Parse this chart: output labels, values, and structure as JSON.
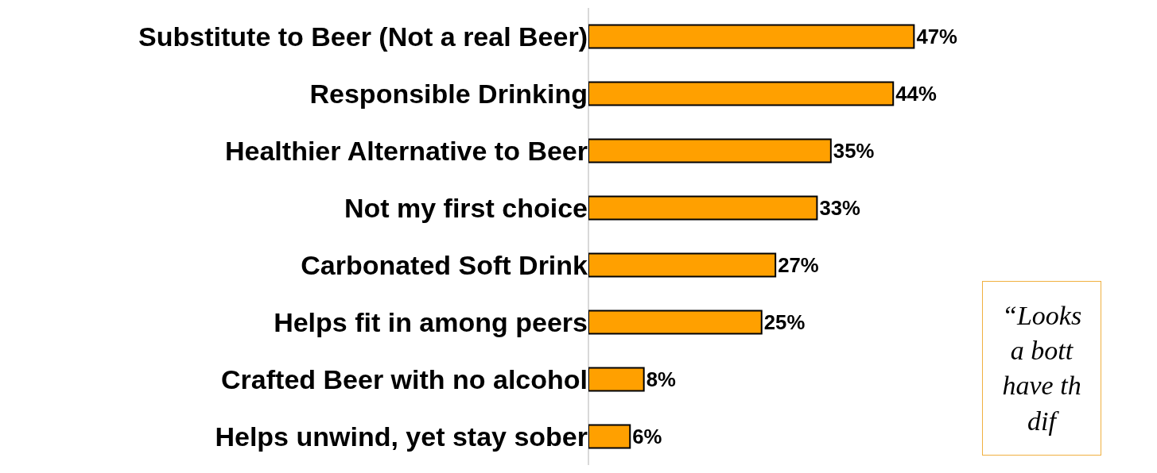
{
  "chart_data": {
    "type": "bar",
    "orientation": "horizontal",
    "categories": [
      "Substitute to Beer (Not a real Beer)",
      "Responsible Drinking",
      "Healthier Alternative to Beer",
      "Not my first choice",
      "Carbonated Soft Drink",
      "Helps fit in among peers",
      "Crafted Beer with no alcohol",
      "Helps unwind, yet stay sober"
    ],
    "values": [
      47,
      44,
      35,
      33,
      27,
      25,
      8,
      6
    ],
    "value_labels": [
      "47%",
      "44%",
      "35%",
      "33%",
      "27%",
      "25%",
      "8%",
      "6%"
    ],
    "color": "#ffa000",
    "annotations": [
      "“Looks\na bott\nhave th\ndif"
    ],
    "grid": false,
    "legend": false,
    "tick_labels": "y"
  }
}
